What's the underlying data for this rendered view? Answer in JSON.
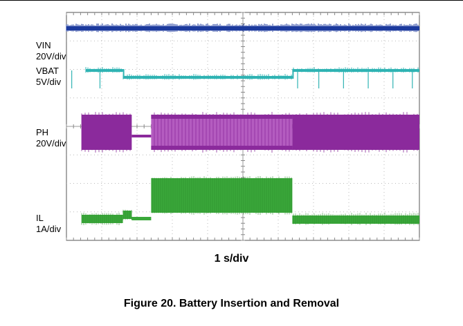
{
  "figure": {
    "caption": "Figure 20. Battery Insertion and Removal"
  },
  "chart_data": {
    "type": "line",
    "title": "",
    "xlabel": "1 s/div",
    "ylabel": "",
    "divisions": {
      "horizontal": 10,
      "vertical": 8
    },
    "grid": true,
    "x_unit": "s",
    "xlim": [
      0,
      10
    ],
    "series": [
      {
        "name": "VIN",
        "scale": "20V/div",
        "color": "#1c3a9e",
        "events": [
          {
            "t": 0,
            "level": "high"
          }
        ]
      },
      {
        "name": "VBAT",
        "scale": "5V/div",
        "color": "#2fb3b3",
        "events": [
          {
            "t": 0.0,
            "level": "high"
          },
          {
            "t": 1.6,
            "level": "low"
          },
          {
            "t": 6.4,
            "level": "high"
          }
        ]
      },
      {
        "name": "PH",
        "scale": "20V/div",
        "color": "#8b2a9c",
        "events": [
          {
            "t": 0.0,
            "level": "switching"
          },
          {
            "t": 1.85,
            "level": "off"
          },
          {
            "t": 2.4,
            "level": "switching-high-duty"
          },
          {
            "t": 6.4,
            "level": "switching"
          }
        ]
      },
      {
        "name": "IL",
        "scale": "1A/div",
        "color": "#3aa83a",
        "events": [
          {
            "t": 0.0,
            "level": "low"
          },
          {
            "t": 1.6,
            "level": "low-step"
          },
          {
            "t": 1.85,
            "level": "off"
          },
          {
            "t": 2.4,
            "level": "high"
          },
          {
            "t": 6.4,
            "level": "low"
          }
        ]
      }
    ]
  }
}
